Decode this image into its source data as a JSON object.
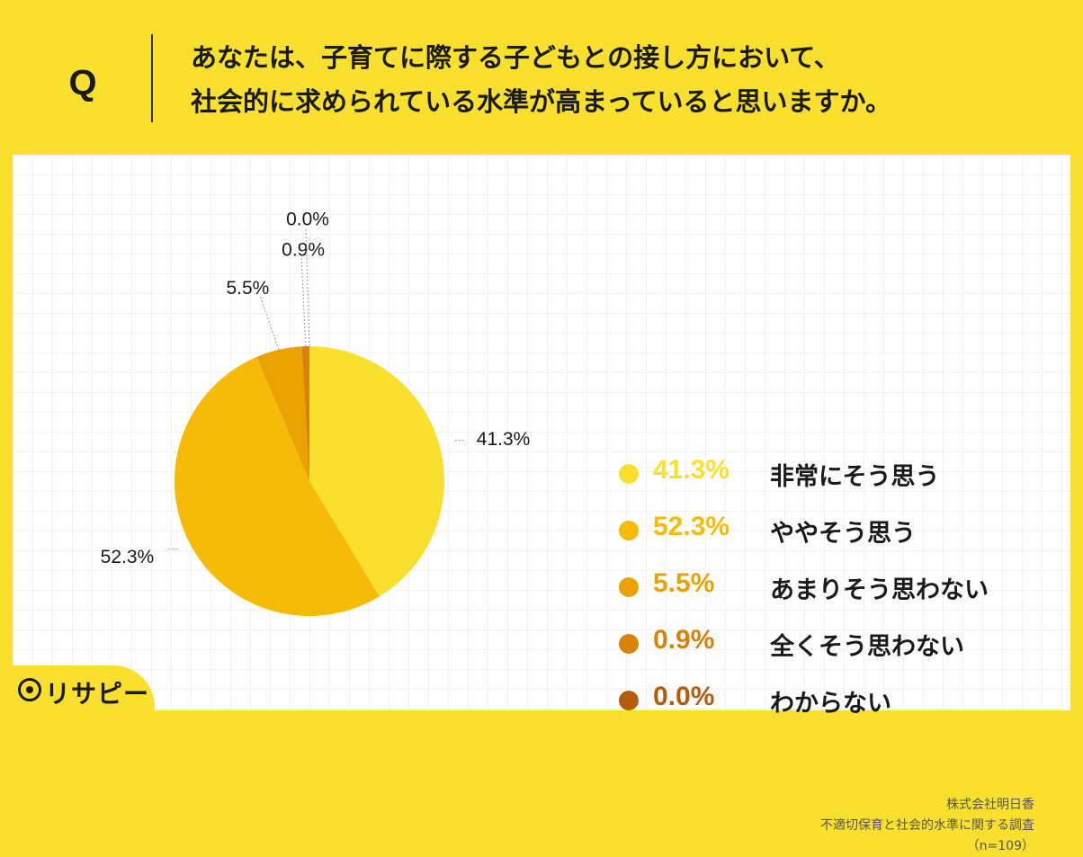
{
  "question": {
    "marker": "Q",
    "line1": "あなたは、子育てに際する子どもとの接し方において、",
    "line2": "社会的に求められている水準が高まっていると思いますか。"
  },
  "chart_data": {
    "type": "pie",
    "title": "",
    "slices": [
      {
        "label": "非常にそう思う",
        "value": 41.3,
        "display": "41.3%",
        "color": "#f9e02e"
      },
      {
        "label": "ややそう思う",
        "value": 52.3,
        "display": "52.3%",
        "color": "#f5bb07"
      },
      {
        "label": "あまりそう思わない",
        "value": 5.5,
        "display": "5.5%",
        "color": "#eaa200"
      },
      {
        "label": "全くそう思わない",
        "value": 0.9,
        "display": "0.9%",
        "color": "#d98208"
      },
      {
        "label": "わからない",
        "value": 0.0,
        "display": "0.0%",
        "color": "#b65c10"
      }
    ],
    "legend_position": "right"
  },
  "source": {
    "company": "株式会社明日香",
    "survey": "不適切保育と社会的水準に関する調査",
    "sample": "（n=109）"
  },
  "logo": {
    "text": "リサピー",
    "icon": "pin-icon"
  }
}
